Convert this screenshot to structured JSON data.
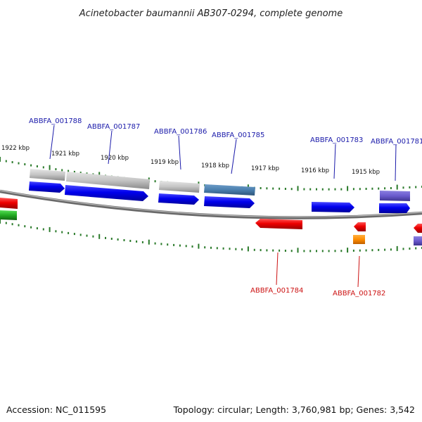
{
  "title": "Acinetobacter baumannii AB307-0294, complete genome",
  "footer": {
    "accession": "Accession: NC_011595",
    "summary": "Topology: circular; Length: 3,760,981 bp; Genes: 3,542"
  },
  "kbp_labels": [
    "1922 kbp",
    "1921 kbp",
    "1920 kbp",
    "1919 kbp",
    "1918 kbp",
    "1917 kbp",
    "1916 kbp",
    "1915 kbp"
  ],
  "gene_labels_forward": [
    "ABBFA_001788",
    "ABBFA_001787",
    "ABBFA_001786",
    "ABBFA_001785",
    "ABBFA_001783",
    "ABBFA_001781"
  ],
  "gene_labels_reverse": [
    "ABBFA_001784",
    "ABBFA_001782"
  ],
  "colors": {
    "cds_forward": "#1111dd",
    "cds_reverse": "#dd1111",
    "grey_feature": "#bbbbbb",
    "steel_feature": "#4a7fae",
    "purple_feature": "#6a5acd",
    "orange_feature": "#ff8c00",
    "green_feature": "#22aa22",
    "tick": "#2a7a2a",
    "backbone": "#888888"
  }
}
